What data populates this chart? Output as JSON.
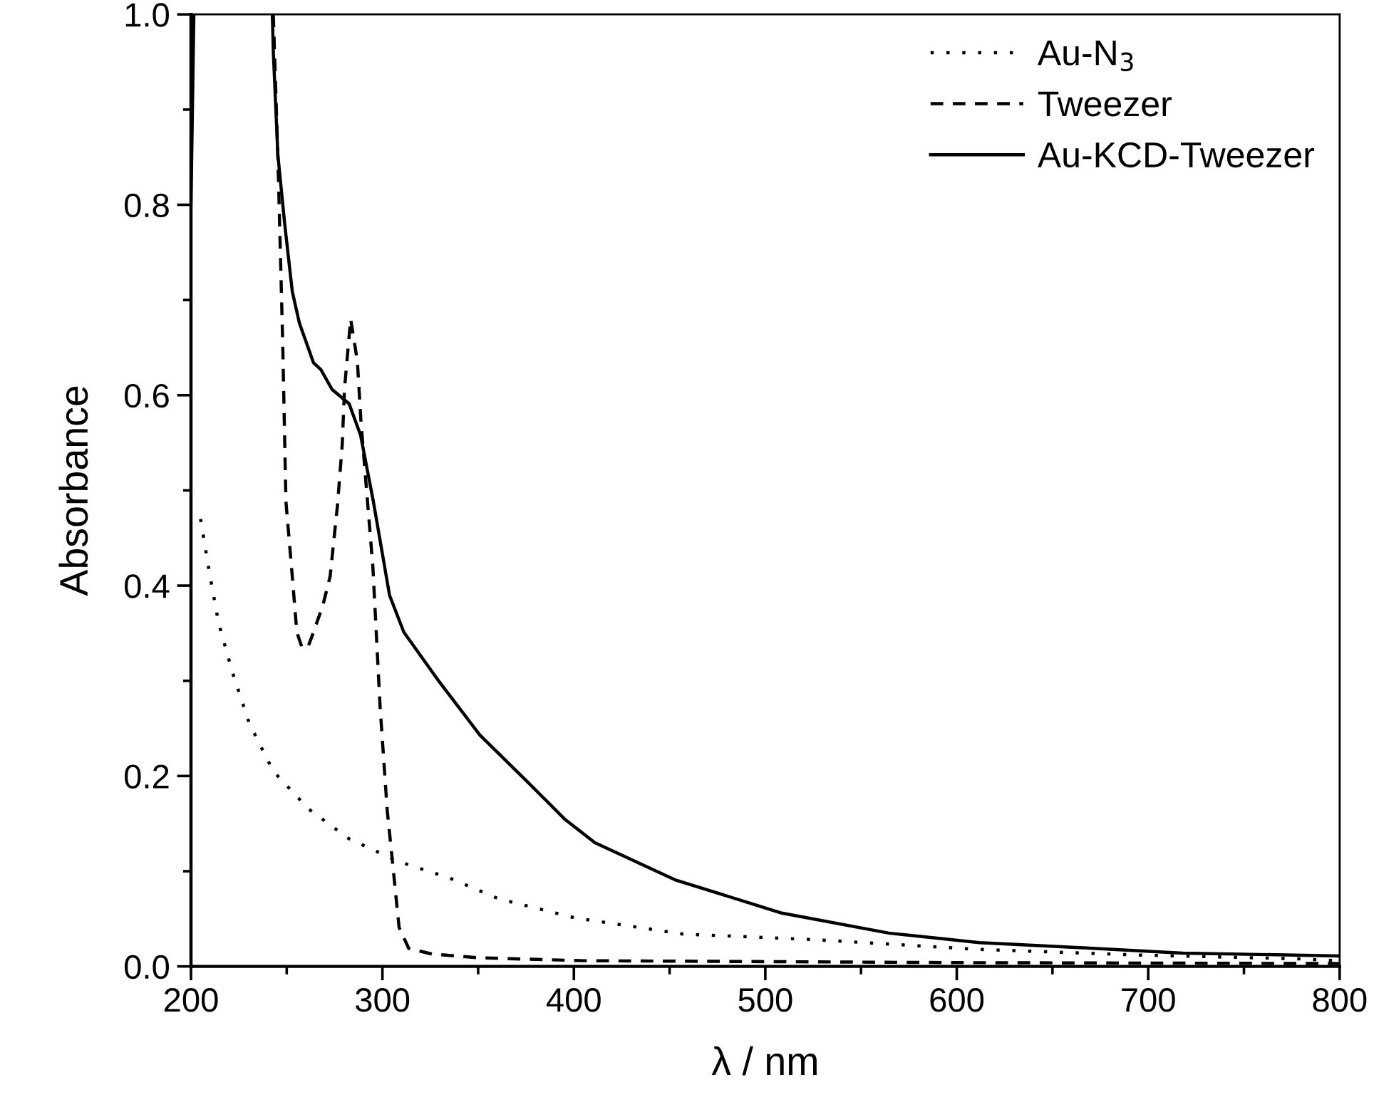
{
  "chart_data": {
    "type": "line",
    "xlabel": "λ / nm",
    "ylabel": "Absorbance",
    "xlim": [
      200,
      800
    ],
    "xticks": [
      200,
      300,
      400,
      500,
      600,
      700,
      800
    ],
    "ylim": [
      0.0,
      1.0
    ],
    "yticks": [
      {
        "value": 0.0,
        "label": "0.0"
      },
      {
        "value": 0.2,
        "label": "0.2"
      },
      {
        "value": 0.4,
        "label": "0.4"
      },
      {
        "value": 0.6,
        "label": "0.6"
      },
      {
        "value": 0.8,
        "label": "0.8"
      },
      {
        "value": 1.0,
        "label": "1.0"
      }
    ],
    "grid": false,
    "legend": "top right",
    "series": [
      {
        "name": "Au-N$_{3}$",
        "color": "#000000",
        "line_style": "dotted",
        "x": [
          205,
          209.5,
          214.4,
          221.8,
          230.5,
          243,
          261.6,
          282.6,
          308.7,
          334.8,
          360.8,
          400.5,
          457,
          527,
          610,
          694,
          778,
          800
        ],
        "values": [
          0.47,
          0.415,
          0.361,
          0.308,
          0.255,
          0.205,
          0.165,
          0.134,
          0.11,
          0.093,
          0.071,
          0.051,
          0.034,
          0.028,
          0.018,
          0.012,
          0.008,
          0.006
        ]
      },
      {
        "name": "Tweezer",
        "color": "#000000",
        "line_style": "dashed",
        "x": [
          243,
          245.4,
          247.9,
          249.6,
          252.9,
          255.3,
          258,
          261,
          264,
          269,
          272.7,
          276.5,
          279,
          280.2,
          283.4,
          286.9,
          288.8,
          291.4,
          295,
          298.8,
          302.5,
          305,
          308.7,
          313.7,
          325.8,
          351,
          405.5,
          600,
          800
        ],
        "values": [
          1.0,
          0.85,
          0.656,
          0.488,
          0.41,
          0.351,
          0.335,
          0.335,
          0.351,
          0.38,
          0.41,
          0.484,
          0.548,
          0.607,
          0.68,
          0.636,
          0.572,
          0.508,
          0.42,
          0.272,
          0.164,
          0.115,
          0.041,
          0.019,
          0.013,
          0.009,
          0.006,
          0.004,
          0.003
        ]
      },
      {
        "name": "Au-KCD-Tweezer",
        "color": "#000000",
        "line_style": "solid",
        "x": [
          200,
          201.5,
          220,
          242.5,
          243,
          245.4,
          249,
          252.9,
          256.6,
          264,
          267.8,
          273.7,
          282.6,
          288.6,
          295.3,
          303.7,
          311.2,
          328.6,
          350.9,
          375.7,
          395.6,
          411,
          452.8,
          508.6,
          564.5,
          611.8,
          662,
          718,
          800
        ],
        "values": [
          0.8,
          1.0,
          null,
          1.0,
          0.961,
          0.852,
          0.779,
          0.709,
          0.676,
          0.634,
          0.627,
          0.606,
          0.591,
          0.558,
          0.488,
          0.39,
          0.351,
          0.302,
          0.243,
          0.194,
          0.154,
          0.13,
          0.091,
          0.056,
          0.035,
          0.025,
          0.02,
          0.014,
          0.011
        ]
      }
    ]
  }
}
